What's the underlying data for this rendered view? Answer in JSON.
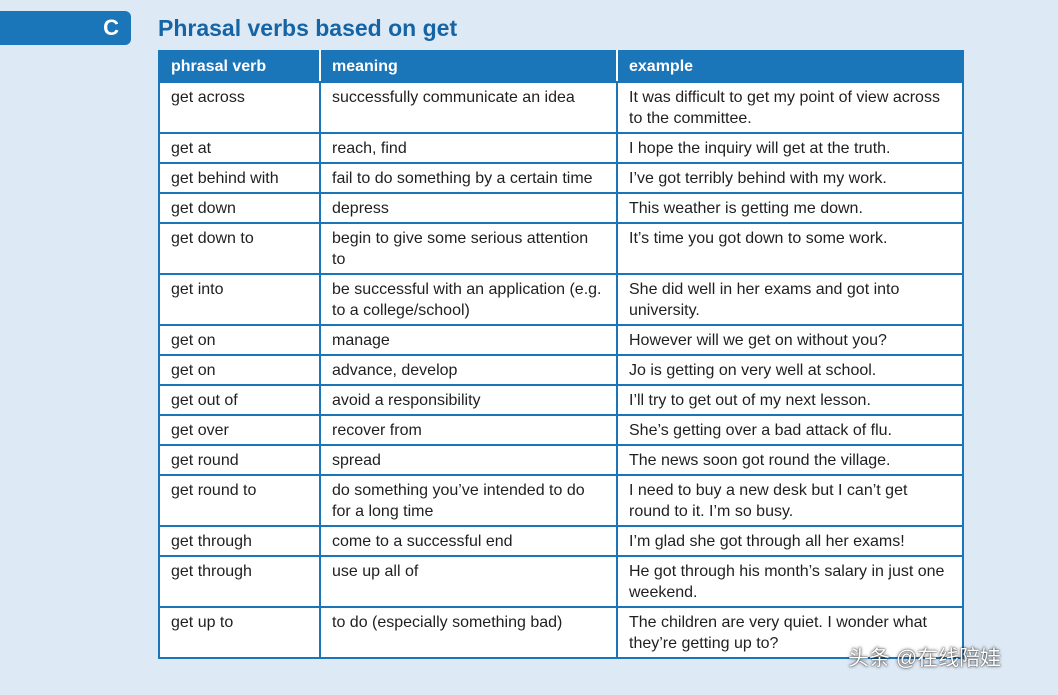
{
  "section": {
    "letter": "C",
    "title": "Phrasal verbs based on get"
  },
  "table": {
    "headers": [
      "phrasal verb",
      "meaning",
      "example"
    ],
    "rows": [
      [
        "get across",
        "successfully communicate an idea",
        "It was difficult to get my point of view across to the committee."
      ],
      [
        "get at",
        "reach, find",
        "I hope the inquiry will get at the truth."
      ],
      [
        "get behind with",
        "fail to do something by a certain time",
        "I’ve got terribly behind with my work."
      ],
      [
        "get down",
        "depress",
        "This weather is getting me down."
      ],
      [
        "get down to",
        "begin to give some serious attention to",
        "It’s time you got down to some work."
      ],
      [
        "get into",
        "be successful with an application (e.g. to a college/school)",
        "She did well in her exams and got into university."
      ],
      [
        "get on",
        "manage",
        "However will we get on without you?"
      ],
      [
        "get on",
        "advance, develop",
        "Jo is getting on very well at school."
      ],
      [
        "get out of",
        "avoid a responsibility",
        "I’ll try to get out of my next lesson."
      ],
      [
        "get over",
        "recover from",
        "She’s getting over a bad attack of flu."
      ],
      [
        "get round",
        "spread",
        "The news soon got round the village."
      ],
      [
        "get round to",
        "do something you’ve intended to do for a long time",
        "I need to buy a new desk but I can’t get round to it. I’m so busy."
      ],
      [
        "get through",
        "come to a successful end",
        "I’m glad she got through all her exams!"
      ],
      [
        "get through",
        "use up all of",
        "He got through his month’s salary in just one weekend."
      ],
      [
        "get up to",
        "to do (especially something bad)",
        "The children are very quiet. I wonder what they’re getting up to?"
      ]
    ]
  },
  "watermark": "头条 @在线陪娃",
  "colors": {
    "accent": "#1a75b9",
    "title": "#1565a6",
    "background": "#dde9f5"
  }
}
